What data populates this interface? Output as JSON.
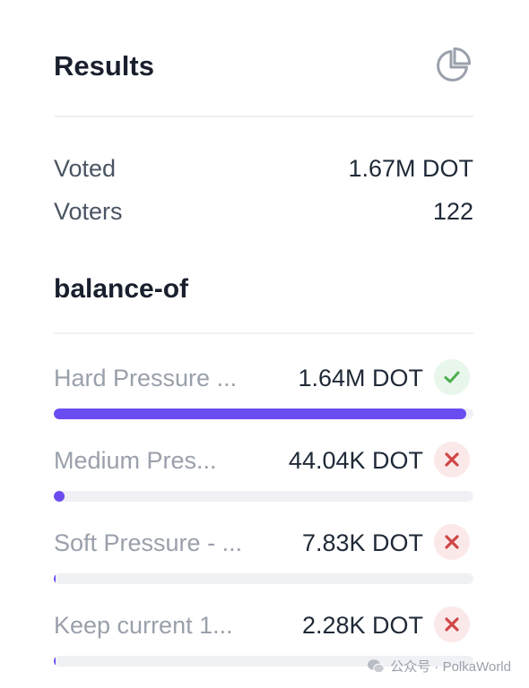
{
  "results": {
    "title": "Results",
    "icon": "pie-chart-icon",
    "stats": [
      {
        "label": "Voted",
        "value": "1.67M DOT"
      },
      {
        "label": "Voters",
        "value": "122"
      }
    ]
  },
  "section": {
    "title": "balance-of",
    "options": [
      {
        "label": "Hard Pressure ...",
        "value": "1.64M DOT",
        "status": "passed",
        "status_icon": "check-icon",
        "share": 0.982
      },
      {
        "label": "Medium Pres...",
        "value": "44.04K DOT",
        "status": "failed",
        "status_icon": "x-icon",
        "share": 0.026
      },
      {
        "label": "Soft Pressure - ...",
        "value": "7.83K DOT",
        "status": "failed",
        "status_icon": "x-icon",
        "share": 0.005
      },
      {
        "label": "Keep current 1...",
        "value": "2.28K DOT",
        "status": "failed",
        "status_icon": "x-icon",
        "share": 0.0014
      }
    ]
  },
  "colors": {
    "accent": "#6a4cf0",
    "success": "#4caf50",
    "danger": "#d04747",
    "track": "#f0f1f4"
  },
  "watermark": {
    "text": "公众号 · PolkaWorld",
    "icon": "wechat-icon"
  }
}
